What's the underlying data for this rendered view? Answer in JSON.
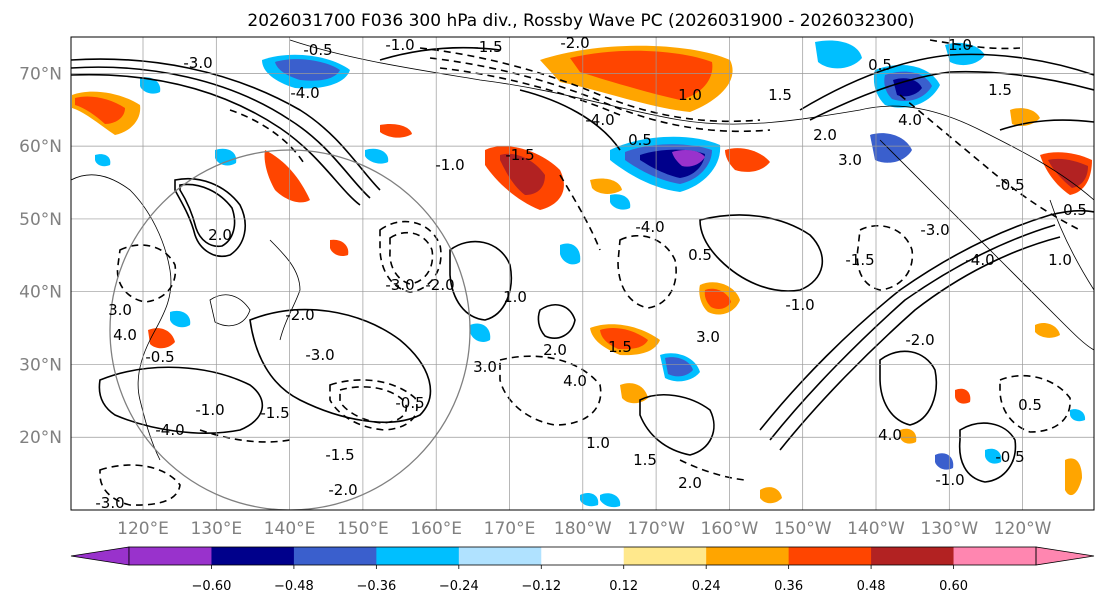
{
  "title": "2026031700 F036 300 hPa div., Rossby Wave PC (2026031900 - 2026032300)",
  "map": {
    "lat_labels": [
      "70°N",
      "60°N",
      "50°N",
      "40°N",
      "30°N",
      "20°N"
    ],
    "lon_labels": [
      "120°E",
      "130°E",
      "140°E",
      "150°E",
      "160°E",
      "170°E",
      "180°W",
      "170°W",
      "160°W",
      "150°W",
      "140°W",
      "130°W",
      "120°W"
    ],
    "contour_labels": [
      "-0.5",
      "-1.0",
      "-1.5",
      "-2.0",
      "-3.0",
      "-4.0",
      "0.5",
      "1.0",
      "1.5",
      "2.0",
      "3.0",
      "4.0"
    ]
  },
  "colorbar": {
    "ticks": [
      "−0.60",
      "−0.48",
      "−0.36",
      "−0.24",
      "−0.12",
      "0.12",
      "0.24",
      "0.36",
      "0.48",
      "0.60"
    ],
    "colors": [
      "#9932cc",
      "#00008b",
      "#3a5fcd",
      "#00bfff",
      "#b0e2ff",
      "#ffffff",
      "#ffe88c",
      "#ffa500",
      "#ff4500",
      "#b22222",
      "#ff86b0"
    ]
  },
  "colors": {
    "grid": "#999999",
    "coast": "#000000",
    "circle": "#808080"
  }
}
